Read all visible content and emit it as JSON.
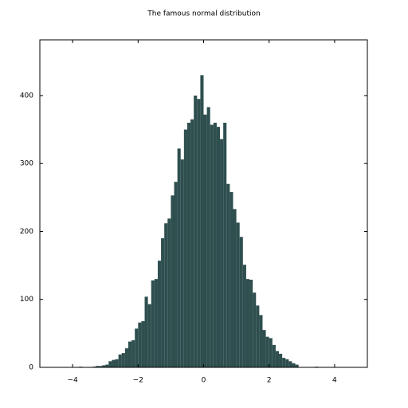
{
  "chart_data": {
    "type": "histogram",
    "title": "The famous normal distribution",
    "bins": [
      -4.5,
      -4.4,
      -4.3,
      -4.2,
      -4.1,
      -4.0,
      -3.9,
      -3.8,
      -3.7,
      -3.6,
      -3.5,
      -3.4,
      -3.3,
      -3.2,
      -3.1,
      -3.0,
      -2.9,
      -2.8,
      -2.7,
      -2.6,
      -2.5,
      -2.4,
      -2.3,
      -2.2,
      -2.1,
      -2.0,
      -1.9,
      -1.8,
      -1.7,
      -1.6,
      -1.5,
      -1.4,
      -1.3,
      -1.2,
      -1.1,
      -1.0,
      -0.9,
      -0.8,
      -0.7,
      -0.6,
      -0.5,
      -0.4,
      -0.3,
      -0.2,
      -0.1,
      0.0,
      0.1,
      0.2,
      0.3,
      0.4,
      0.5,
      0.6,
      0.7,
      0.8,
      0.9,
      1.0,
      1.1,
      1.2,
      1.3,
      1.4,
      1.5,
      1.6,
      1.7,
      1.8,
      1.9,
      2.0,
      2.1,
      2.2,
      2.3,
      2.4,
      2.5,
      2.6,
      2.7,
      2.8,
      2.9,
      3.0,
      3.1,
      3.2,
      3.3,
      3.4,
      3.5,
      3.6,
      3.7,
      3.8,
      3.9,
      4.0,
      4.1,
      4.2,
      4.3,
      4.4,
      4.5
    ],
    "values": [
      0,
      0,
      0,
      0,
      0,
      0,
      0,
      1,
      0,
      0,
      0,
      1,
      2,
      2,
      3,
      4,
      9,
      11,
      12,
      19,
      21,
      28,
      38,
      40,
      57,
      66,
      68,
      104,
      93,
      128,
      130,
      157,
      190,
      212,
      219,
      253,
      273,
      322,
      306,
      350,
      360,
      365,
      400,
      395,
      430,
      372,
      383,
      357,
      360,
      354,
      336,
      360,
      270,
      258,
      233,
      213,
      192,
      151,
      130,
      129,
      110,
      91,
      77,
      55,
      45,
      43,
      33,
      24,
      20,
      14,
      12,
      9,
      6,
      4,
      0,
      0,
      0,
      0,
      0,
      1,
      0,
      0,
      0,
      0,
      0,
      0,
      0,
      0,
      0,
      0
    ],
    "color": "#2f4f4f",
    "xlim": [
      -5,
      5
    ],
    "xticks": [
      {
        "value": -4,
        "label": "−4"
      },
      {
        "value": -2,
        "label": "−2"
      },
      0,
      2,
      4
    ],
    "ylim": [
      0,
      482
    ],
    "yticks": [
      0,
      100,
      200,
      300,
      400
    ],
    "grid": false
  }
}
